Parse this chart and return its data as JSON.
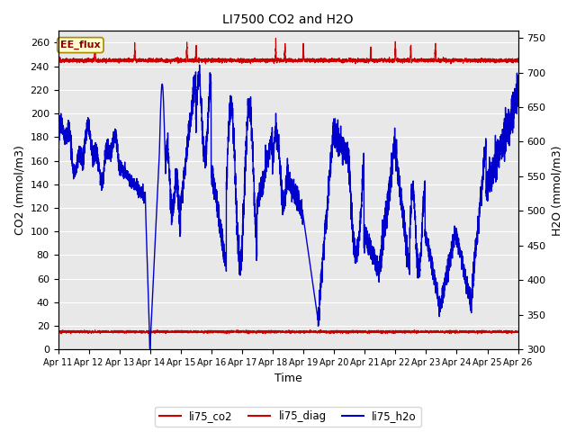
{
  "title": "LI7500 CO2 and H2O",
  "xlabel": "Time",
  "ylabel_left": "CO2 (mmol/m3)",
  "ylabel_right": "H2O (mmol/m3)",
  "annotation": "EE_flux",
  "ylim_left": [
    0,
    270
  ],
  "ylim_right": [
    300,
    760
  ],
  "yticks_left": [
    0,
    20,
    40,
    60,
    80,
    100,
    120,
    140,
    160,
    180,
    200,
    220,
    240,
    260
  ],
  "yticks_right": [
    300,
    350,
    400,
    450,
    500,
    550,
    600,
    650,
    700,
    750
  ],
  "xtick_labels": [
    "Apr 11",
    "Apr 12",
    "Apr 13",
    "Apr 14",
    "Apr 15",
    "Apr 16",
    "Apr 17",
    "Apr 18",
    "Apr 19",
    "Apr 20",
    "Apr 21",
    "Apr 22",
    "Apr 23",
    "Apr 24",
    "Apr 25",
    "Apr 26"
  ],
  "co2_color": "#cc0000",
  "diag_color": "#cc0000",
  "h2o_color": "#0000cc",
  "bg_color": "#e8e8e8",
  "grid_color": "#ffffff",
  "legend_items": [
    "li75_co2",
    "li75_diag",
    "li75_h2o"
  ],
  "legend_colors": [
    "#cc0000",
    "#cc0000",
    "#0000cc"
  ],
  "legend_linestyles": [
    "-",
    "-",
    "-"
  ]
}
